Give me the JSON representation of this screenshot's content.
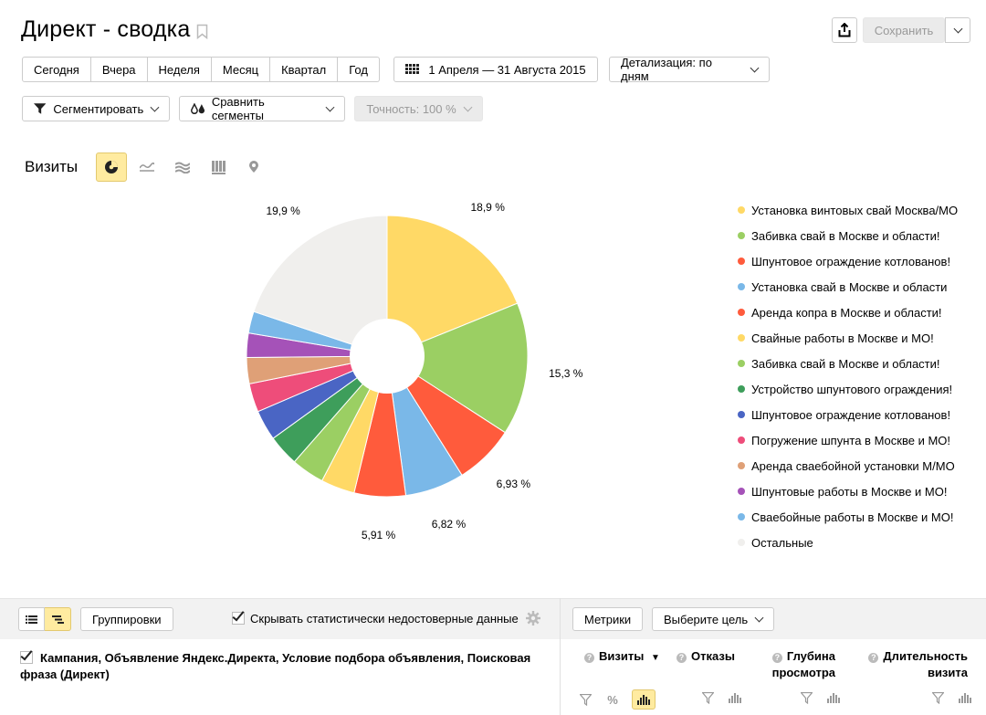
{
  "header": {
    "title": "Директ - сводка",
    "save_label": "Сохранить"
  },
  "periods": [
    "Сегодня",
    "Вчера",
    "Неделя",
    "Месяц",
    "Квартал",
    "Год"
  ],
  "date_range": "1 Апреля — 31 Августа 2015",
  "detail": "Детализация: по дням",
  "segment": "Сегментировать",
  "compare": "Сравнить сегменты",
  "accuracy": "Точность: 100 %",
  "metric": "Визиты",
  "view_icons": [
    "pie-icon",
    "line-icon",
    "area-icon",
    "bar-icon",
    "map-icon"
  ],
  "chart_data": {
    "type": "pie",
    "series_name": "Визиты",
    "slices": [
      {
        "label": "Установка винтовых свай Москва/МО",
        "value": 18.9,
        "color": "#ffd966",
        "shown": "18,9 %"
      },
      {
        "label": "Забивка свай в Москве и области!",
        "value": 15.3,
        "color": "#9bcf63",
        "shown": "15,3 %"
      },
      {
        "label": "Шпунтовое ограждение котлованов!",
        "value": 6.93,
        "color": "#ff5b3c",
        "shown": "6,93 %"
      },
      {
        "label": "Установка свай в Москве и области",
        "value": 6.82,
        "color": "#7ab8e8",
        "shown": "6,82 %"
      },
      {
        "label": "Аренда копра в Москве и области!",
        "value": 5.91,
        "color": "#ff5b3c",
        "shown": "5,91 %"
      },
      {
        "label": "Свайные работы в Москве и МО!",
        "value": 3.9,
        "color": "#ffd966",
        "shown": ""
      },
      {
        "label": "Забивка свай в Москве и области!",
        "value": 3.8,
        "color": "#9bcf63",
        "shown": ""
      },
      {
        "label": "Устройство шпунтового ограждения!",
        "value": 3.6,
        "color": "#3e9e5b",
        "shown": ""
      },
      {
        "label": "Шпунтовое ограждение котлованов!",
        "value": 3.5,
        "color": "#4a65c4",
        "shown": ""
      },
      {
        "label": "Погружение шпунта в Москве и МО!",
        "value": 3.3,
        "color": "#ee4d7a",
        "shown": ""
      },
      {
        "label": "Аренда сваебойной установки М/МО",
        "value": 3.0,
        "color": "#dfa077",
        "shown": ""
      },
      {
        "label": "Шпунтовые работы в Москве и МО!",
        "value": 2.8,
        "color": "#a552b8",
        "shown": ""
      },
      {
        "label": "Сваебойные работы в Москве и МО!",
        "value": 2.5,
        "color": "#7ab8e8",
        "shown": ""
      },
      {
        "label": "Остальные",
        "value": 19.9,
        "color": "#f0efed",
        "shown": "19,9 %"
      }
    ]
  },
  "footer": {
    "grouping": "Группировки",
    "hide_stats": "Скрывать статистически недостоверные данные",
    "metrics": "Метрики",
    "goal": "Выберите цель",
    "dimensions": "Кампания, Объявление Яндекс.Директа, Условие подбора объявления, Поисковая фраза (Директ)",
    "columns": [
      {
        "label": "Визиты",
        "sort": "▼"
      },
      {
        "label": "Отказы"
      },
      {
        "label_line1": "Глубина",
        "label_line2": "просмотра"
      },
      {
        "label_line1": "Длительность",
        "label_line2": "визита"
      }
    ]
  }
}
